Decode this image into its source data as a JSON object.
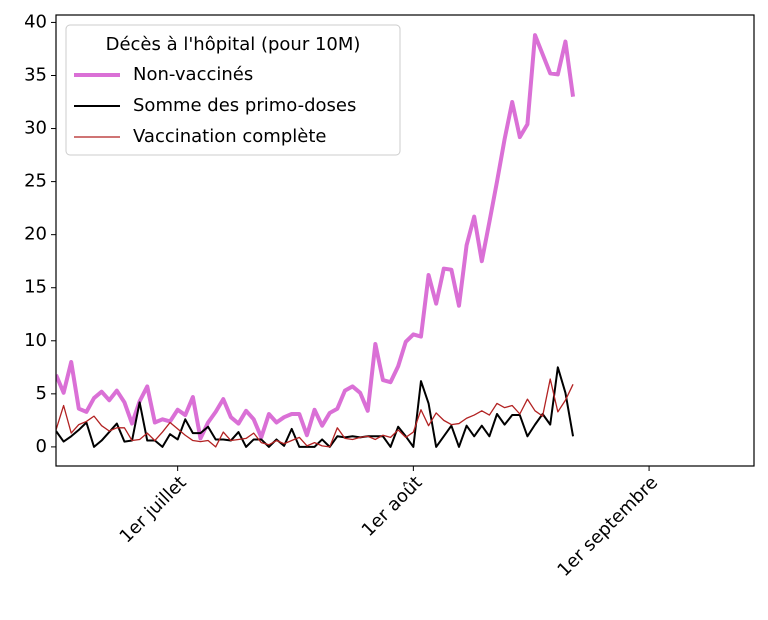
{
  "chart_data": {
    "type": "line",
    "legend_title": "Décès à l'hôpital (pour 10M)",
    "legend_position": "upper left",
    "x": [
      -16,
      -15,
      -14,
      -13,
      -12,
      -11,
      -10,
      -9,
      -8,
      -7,
      -6,
      -5,
      -4,
      -3,
      -2,
      -1,
      0,
      1,
      2,
      3,
      4,
      5,
      6,
      7,
      8,
      9,
      10,
      11,
      12,
      13,
      14,
      15,
      16,
      17,
      18,
      19,
      20,
      21,
      22,
      23,
      24,
      25,
      26,
      27,
      28,
      29,
      30,
      31,
      32,
      33,
      34,
      35,
      36,
      37,
      38,
      39,
      40,
      41,
      42,
      43,
      44,
      45,
      46,
      47,
      48,
      49,
      50,
      51,
      52
    ],
    "series": [
      {
        "name": "Non-vaccinés",
        "color": "#da70d6",
        "width": 4,
        "values": [
          6.8,
          5.1,
          8,
          3.6,
          3.3,
          4.6,
          5.2,
          4.4,
          5.3,
          4.2,
          2.2,
          4.3,
          5.7,
          2.3,
          2.6,
          2.4,
          3.5,
          3.0,
          4.7,
          0.8,
          2.3,
          3.3,
          4.5,
          2.8,
          2.2,
          3.4,
          2.6,
          0.9,
          3.1,
          2.3,
          2.8,
          3.1,
          3.1,
          1.1,
          3.5,
          2.0,
          3.2,
          3.6,
          5.3,
          5.7,
          5.1,
          3.4,
          9.7,
          6.3,
          6.1,
          7.6,
          9.9,
          10.6,
          10.4,
          16.2,
          13.5,
          16.8,
          16.7,
          13.3,
          19.0,
          21.7,
          17.5,
          21.2,
          25.0,
          29.0,
          32.5,
          29.2,
          30.4,
          38.8,
          37.0,
          35.2,
          35.1,
          38.2,
          33.0
        ]
      },
      {
        "name": "Somme des primo-doses",
        "color": "#000000",
        "width": 2,
        "values": [
          1.5,
          0.5,
          1.0,
          1.6,
          2.3,
          0.0,
          0.6,
          1.4,
          2.2,
          0.5,
          0.6,
          4.2,
          0.6,
          0.6,
          0.0,
          1.2,
          0.7,
          2.6,
          1.3,
          1.3,
          1.9,
          0.7,
          0.7,
          0.6,
          1.4,
          0.0,
          0.7,
          0.7,
          0.0,
          0.7,
          0.1,
          1.7,
          0.0,
          0.0,
          0.0,
          0.7,
          0.0,
          1.0,
          0.9,
          1.0,
          0.9,
          1.0,
          1.0,
          1.0,
          0.0,
          1.9,
          1.0,
          0.0,
          6.2,
          4.1,
          0.0,
          1.0,
          2.0,
          0.0,
          2.0,
          1.0,
          2.0,
          1.0,
          3.1,
          2.1,
          3.0,
          3.0,
          1.0,
          2.1,
          3.1,
          2.1,
          7.5,
          5.1,
          1.0
        ]
      },
      {
        "name": "Vaccination complète",
        "color": "#b22222",
        "width": 1.3,
        "values": [
          1.6,
          3.9,
          1.3,
          2.1,
          2.4,
          2.9,
          2.0,
          1.5,
          1.8,
          1.8,
          0.6,
          0.7,
          1.3,
          0.6,
          1.4,
          2.3,
          1.7,
          1.1,
          0.6,
          0.5,
          0.6,
          0.0,
          1.4,
          0.6,
          0.7,
          0.8,
          1.3,
          0.4,
          0.2,
          0.6,
          0.3,
          0.6,
          0.9,
          0.1,
          0.4,
          0.1,
          0.0,
          1.8,
          0.8,
          0.7,
          0.9,
          1.0,
          0.7,
          1.1,
          0.9,
          1.6,
          0.9,
          1.4,
          3.5,
          2.0,
          3.2,
          2.5,
          2.1,
          2.2,
          2.7,
          3.0,
          3.4,
          3.0,
          4.1,
          3.7,
          3.9,
          3.1,
          4.5,
          3.4,
          2.9,
          6.4,
          3.3,
          4.4,
          5.9
        ]
      }
    ],
    "xlim": [
      -16,
      75.8
    ],
    "xticks": [
      {
        "value": 0,
        "label": "1er juillet"
      },
      {
        "value": 31,
        "label": "1er août"
      },
      {
        "value": 62,
        "label": "1er septembre"
      }
    ],
    "ylim": [
      -1.8,
      40.7
    ],
    "yticks": [
      0,
      5,
      10,
      15,
      20,
      25,
      30,
      35,
      40
    ],
    "grid": false
  }
}
